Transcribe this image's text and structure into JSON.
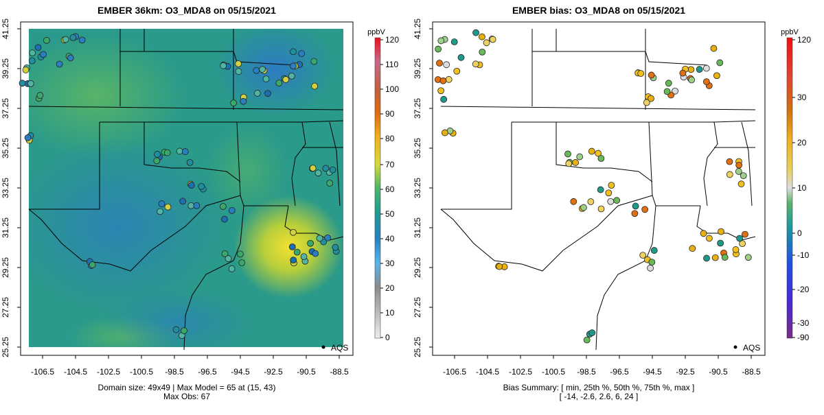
{
  "left": {
    "title": "EMBER 36km: O3_MDA8 on 05/15/2021",
    "colorbar_unit": "ppbV",
    "colorbar_ticks": [
      "0",
      "10",
      "20",
      "30",
      "40",
      "50",
      "60",
      "70",
      "80",
      "90",
      "100",
      "110",
      "120"
    ],
    "x_ticks": [
      "-106.5",
      "-104.5",
      "-102.5",
      "-100.5",
      "-98.5",
      "-96.5",
      "-94.5",
      "-92.5",
      "-90.5",
      "-88.5"
    ],
    "y_ticks": [
      "25.25",
      "27.25",
      "29.25",
      "31.25",
      "33.25",
      "35.25",
      "37.25",
      "39.25",
      "41.25"
    ],
    "legend_label": "AQS",
    "footer_line1": "Domain size: 49x49 | Max Model = 65 at (15, 43)",
    "footer_line2": "Max Obs: 67"
  },
  "right": {
    "title": "EMBER bias: O3_MDA8 on 05/15/2021",
    "colorbar_unit": "ppbV",
    "colorbar_ticks": [
      "-90",
      "-30",
      "-20",
      "-10",
      "0",
      "10",
      "20",
      "30",
      "120"
    ],
    "x_ticks": [
      "-106.5",
      "-104.5",
      "-102.5",
      "-100.5",
      "-98.5",
      "-96.5",
      "-94.5",
      "-92.5",
      "-90.5",
      "-88.5"
    ],
    "y_ticks": [
      "25.25",
      "27.25",
      "29.25",
      "31.25",
      "33.25",
      "35.25",
      "37.25",
      "39.25",
      "41.25"
    ],
    "legend_label": "AQS",
    "footer_line1": "Bias Summary: [ min, 25th %, 50th %, 75th %, max ]",
    "footer_line2": "[ -14,   -2.6,   2.6,   6,   24 ]"
  },
  "colors": {
    "model_low": "#1f7fc0",
    "model_mid": "#2aa384",
    "model_high": "#f0e040",
    "bias_neg": "#2aa35a",
    "bias_pos": "#f0b400"
  }
}
